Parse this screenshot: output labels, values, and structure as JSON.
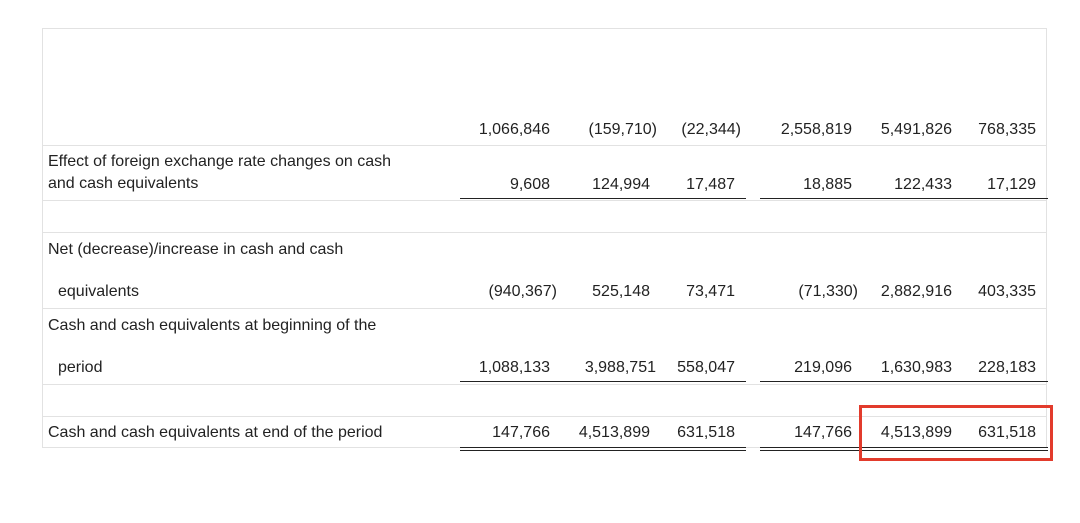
{
  "rows": {
    "subtotal": {
      "cells": [
        "1,066,846",
        "(159,710)",
        "(22,344)",
        "2,558,819",
        "5,491,826",
        "768,335"
      ]
    },
    "fx_effect": {
      "label_line1": "Effect of foreign exchange rate changes on cash",
      "label_line2": "and cash equivalents",
      "cells": [
        "9,608",
        "124,994",
        "17,487",
        "18,885",
        "122,433",
        "17,129"
      ]
    },
    "net_change": {
      "label_line1": "Net (decrease)/increase in cash and cash",
      "label_line2": "equivalents",
      "cells": [
        "(940,367)",
        "525,148",
        "73,471",
        "(71,330)",
        "2,882,916",
        "403,335"
      ]
    },
    "beginning": {
      "label_line1": "Cash and cash equivalents at beginning of the",
      "label_line2": "period",
      "cells": [
        "1,088,133",
        "3,988,751",
        "558,047",
        "219,096",
        "1,630,983",
        "228,183"
      ]
    },
    "ending": {
      "label": "Cash and cash equivalents at end of the period",
      "cells": [
        "147,766",
        "4,513,899",
        "631,518",
        "147,766",
        "4,513,899",
        "631,518"
      ]
    }
  },
  "highlight_color": "#e23b2c"
}
